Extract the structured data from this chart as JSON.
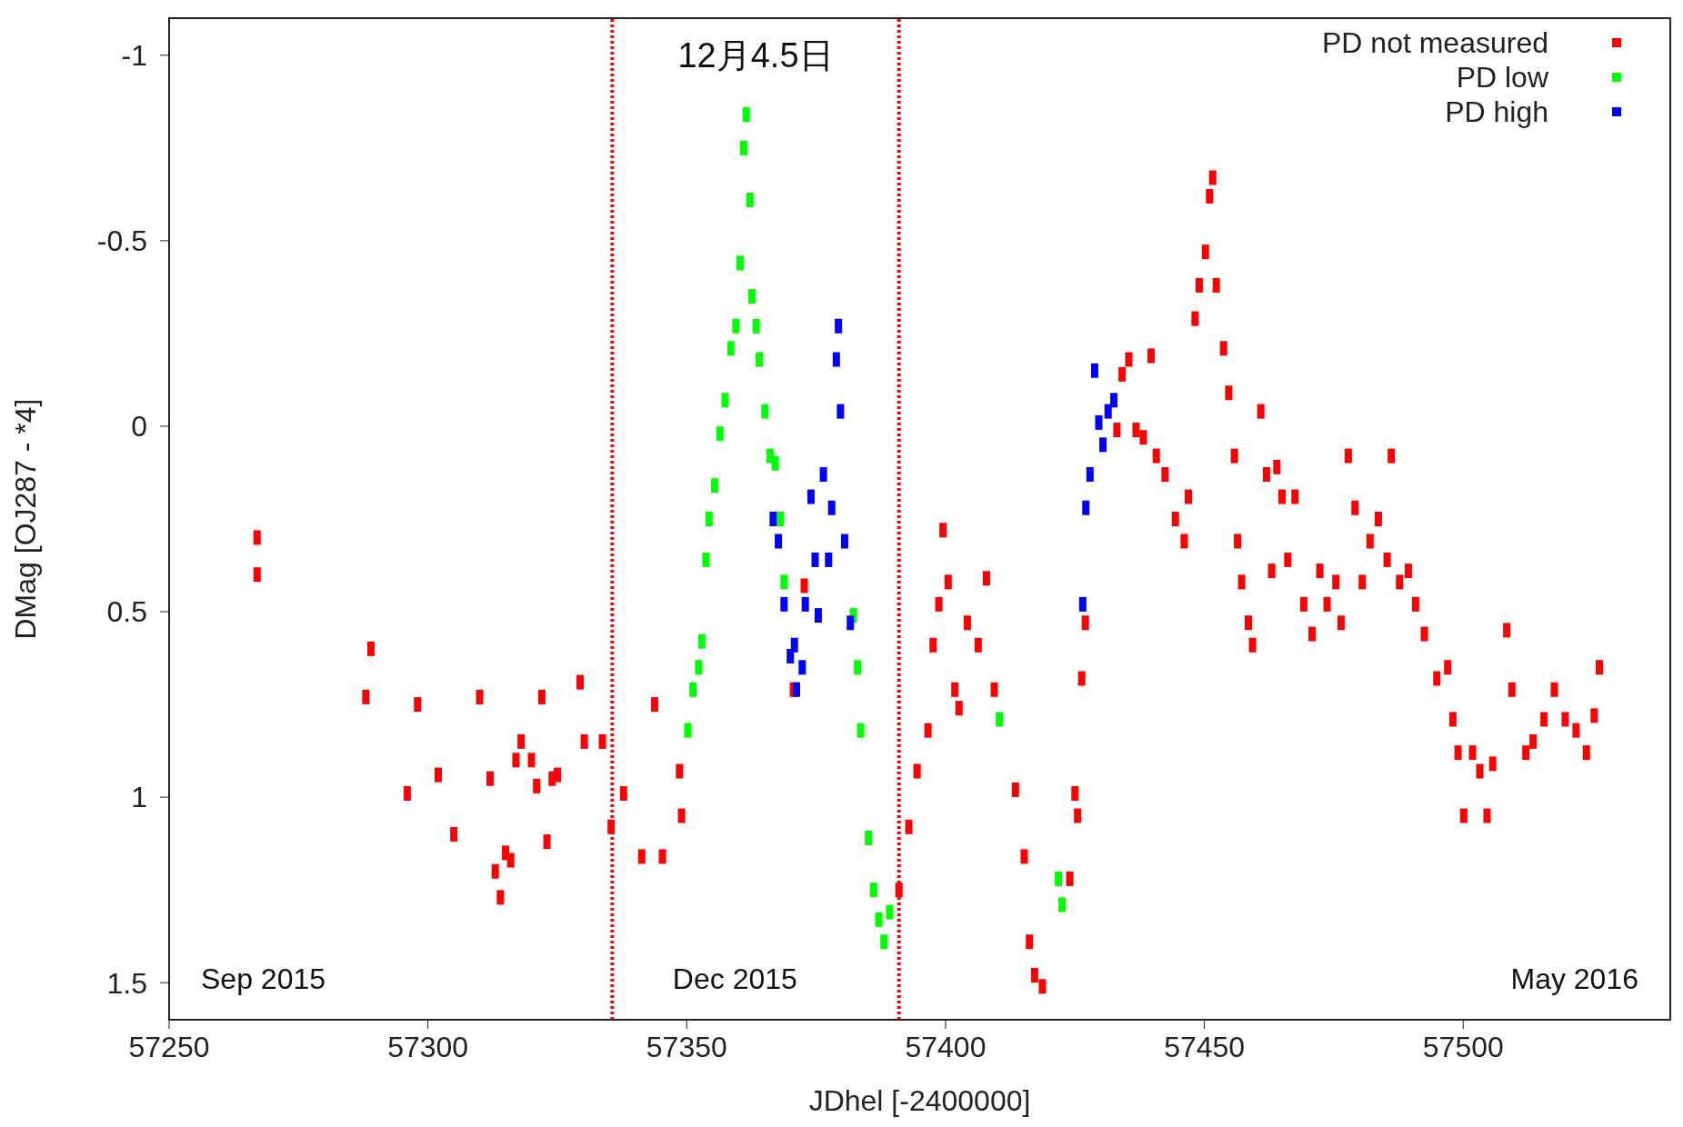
{
  "chart_data": {
    "type": "scatter",
    "xlabel": "JDhel [-2400000]",
    "ylabel": "DMag [OJ287 - *4]",
    "xlim": [
      57250,
      57540
    ],
    "ylim": [
      1.6,
      -1.1
    ],
    "xticks": [
      57250,
      57300,
      57350,
      57400,
      57450,
      57500
    ],
    "yticks": [
      -1,
      -0.5,
      0,
      0.5,
      1,
      1.5
    ],
    "marker": "square",
    "legend": "top right",
    "grid": false,
    "ref_lines": [
      {
        "axis": "x",
        "value": 57335.6,
        "color": "#ff0000",
        "line_style": "dotted"
      },
      {
        "axis": "x",
        "value": 57391,
        "color": "#ff0000",
        "line_style": "dotted"
      }
    ],
    "annotations": [
      "12月4.5日",
      "Sep 2015",
      "Dec 2015",
      "May 2016"
    ],
    "series": [
      {
        "name": "PD not measured",
        "color": "#ff0000",
        "x": [
          57267,
          57267,
          57288,
          57289,
          57296,
          57298,
          57302,
          57305,
          57310,
          57312,
          57313,
          57314,
          57315,
          57316,
          57317,
          57318,
          57320,
          57321,
          57322,
          57323,
          57324,
          57325,
          57329.4,
          57330.2,
          57333.7,
          57335.4,
          57337.8,
          57341.3,
          57343.8,
          57345.3,
          57348.6,
          57349,
          57370.6,
          57372.7,
          57391,
          57392.9,
          57394.5,
          57396.6,
          57397.6,
          57398.7,
          57399.5,
          57400.5,
          57401.8,
          57402.6,
          57404.2,
          57406.3,
          57407.9,
          57409.4,
          57413.5,
          57415.2,
          57416.2,
          57417.2,
          57418.7,
          57424,
          57425,
          57425.5,
          57426.3,
          57427,
          57433.1,
          57434.1,
          57435.4,
          57436.8,
          57438.2,
          57439.7,
          57440.7,
          57442.4,
          57444.4,
          57446.1,
          57446.9,
          57448.2,
          57449,
          57450.2,
          57451,
          57451.6,
          57452.3,
          57453.7,
          57454.7,
          57455.8,
          57456.4,
          57457.2,
          57458.5,
          57459.3,
          57460.9,
          57462,
          57463,
          57464,
          57465,
          57466.1,
          57467.5,
          57469.2,
          57470.8,
          57472.3,
          57473.7,
          57475.4,
          57476.4,
          57477.8,
          57479.1,
          57480.5,
          57482,
          57483.6,
          57485.3,
          57486.1,
          57487.7,
          57489.4,
          57490.8,
          57492.5,
          57494.9,
          57497,
          57498,
          57499,
          57500.1,
          57501.8,
          57503.2,
          57504.6,
          57505.7,
          57508.4,
          57509.4,
          57512.1,
          57513.5,
          57515.6,
          57517.6,
          57519.7,
          57521.8,
          57523.8,
          57525.3,
          57526.3
        ],
        "values": [
          0.3,
          0.4,
          0.73,
          0.6,
          0.99,
          0.75,
          0.94,
          1.1,
          0.73,
          0.95,
          1.2,
          1.27,
          1.15,
          1.17,
          0.9,
          0.85,
          0.9,
          0.97,
          0.73,
          1.12,
          0.95,
          0.94,
          0.69,
          0.85,
          0.85,
          1.08,
          0.99,
          1.16,
          0.75,
          1.16,
          0.93,
          1.05,
          0.71,
          0.43,
          1.25,
          1.08,
          0.93,
          0.82,
          0.59,
          0.48,
          0.28,
          0.42,
          0.71,
          0.76,
          0.53,
          0.59,
          0.41,
          0.71,
          0.98,
          1.16,
          1.39,
          1.48,
          1.51,
          1.22,
          0.99,
          1.05,
          0.68,
          0.53,
          0.01,
          -0.14,
          -0.18,
          0.01,
          0.03,
          -0.19,
          0.08,
          0.13,
          0.25,
          0.31,
          0.19,
          -0.29,
          -0.38,
          -0.47,
          -0.62,
          -0.67,
          -0.38,
          -0.21,
          -0.09,
          0.08,
          0.31,
          0.42,
          0.53,
          0.59,
          -0.04,
          0.13,
          0.39,
          0.11,
          0.19,
          0.36,
          0.19,
          0.48,
          0.56,
          0.39,
          0.48,
          0.42,
          0.53,
          0.08,
          0.22,
          0.42,
          0.31,
          0.25,
          0.36,
          0.08,
          0.42,
          0.39,
          0.48,
          0.56,
          0.68,
          0.65,
          0.79,
          0.88,
          1.05,
          0.88,
          0.93,
          1.05,
          0.91,
          0.55,
          0.71,
          0.88,
          0.85,
          0.79,
          0.71,
          0.79,
          0.82,
          0.88,
          0.78,
          0.65
        ]
      },
      {
        "name": "PD low",
        "color": "#00ff00",
        "x": [
          57350.2,
          57351.2,
          57352.3,
          57352.9,
          57353.7,
          57354.3,
          57355.4,
          57356.4,
          57357.4,
          57358.5,
          57359.5,
          57360.3,
          57361,
          57361.5,
          57362.2,
          57362.6,
          57363.4,
          57364,
          57365.1,
          57366.1,
          57367.1,
          57368.1,
          57368.8,
          57382.2,
          57383,
          57383.6,
          57385.1,
          57386.1,
          57387.1,
          57388.1,
          57389.2,
          57410.4,
          57421.8,
          57422.5
        ],
        "values": [
          0.82,
          0.71,
          0.65,
          0.58,
          0.36,
          0.25,
          0.16,
          0.02,
          -0.07,
          -0.21,
          -0.27,
          -0.44,
          -0.75,
          -0.84,
          -0.61,
          -0.35,
          -0.27,
          -0.18,
          -0.04,
          0.08,
          0.1,
          0.25,
          0.42,
          0.51,
          0.65,
          0.82,
          1.11,
          1.25,
          1.33,
          1.39,
          1.31,
          0.79,
          1.22,
          1.29
        ]
      },
      {
        "name": "PD high",
        "color": "#0000ff",
        "x": [
          57366.7,
          57367.7,
          57368.8,
          57370,
          57370.8,
          57371.2,
          57372.3,
          57372.9,
          57374,
          57374.8,
          57375.4,
          57376.4,
          57377.4,
          57378,
          57378.9,
          57379.3,
          57379.7,
          57380.5,
          57381.6,
          57426.5,
          57427.1,
          57427.9,
          57428.8,
          57429.6,
          57430.4,
          57431.4,
          57432.5
        ],
        "values": [
          0.25,
          0.31,
          0.48,
          0.62,
          0.59,
          0.71,
          0.65,
          0.48,
          0.19,
          0.36,
          0.51,
          0.13,
          0.36,
          0.22,
          -0.18,
          -0.27,
          -0.04,
          0.31,
          0.53,
          0.48,
          0.22,
          0.13,
          -0.15,
          -0.01,
          0.05,
          -0.04,
          -0.07
        ]
      }
    ]
  }
}
